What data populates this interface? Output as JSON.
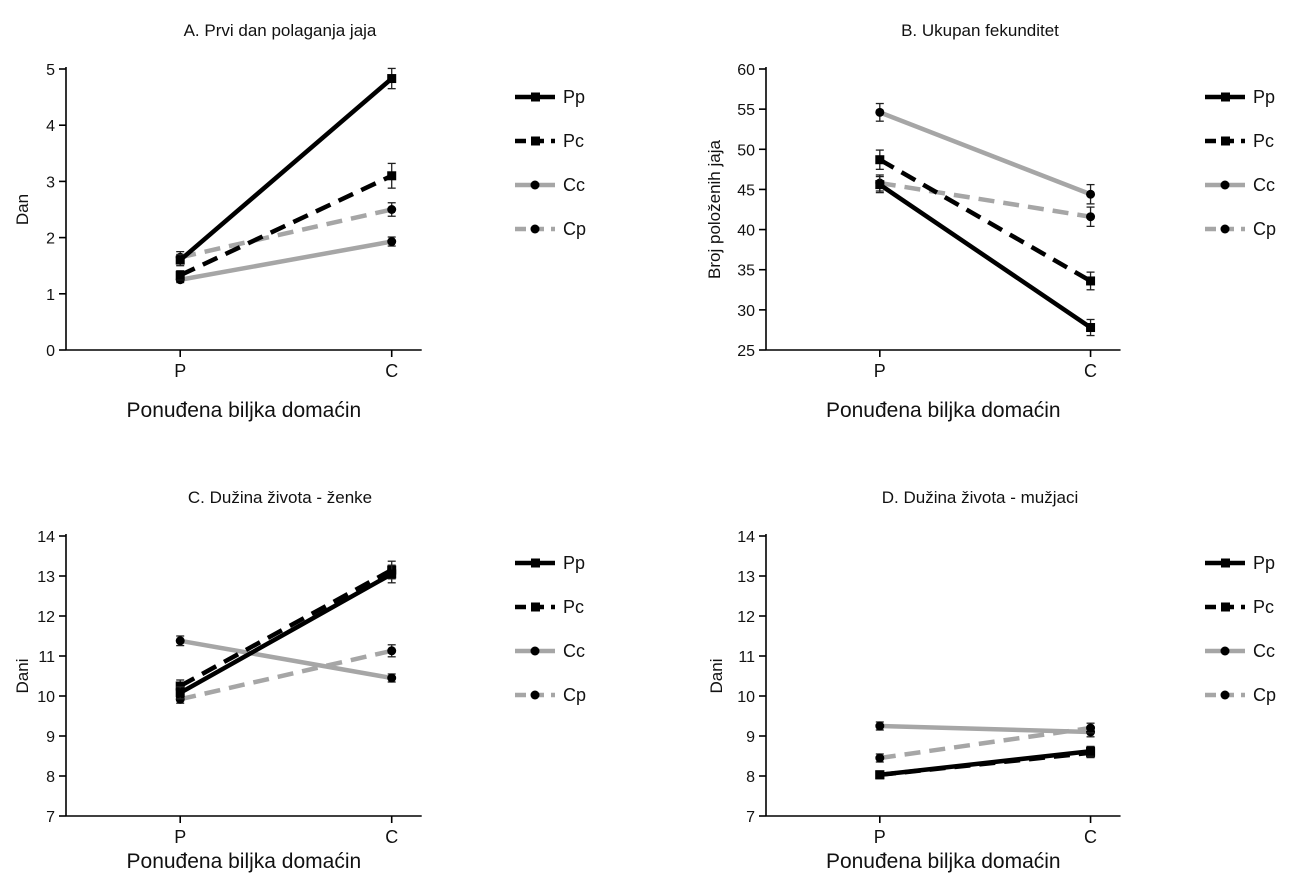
{
  "chart_data": [
    {
      "type": "line",
      "title": "A. Prvi dan polaganja jaja",
      "xlabel": "Ponuđena biljka domaćin",
      "ylabel": "Dan",
      "categories": [
        "P",
        "C"
      ],
      "ylim": [
        0,
        5
      ],
      "yticks": [
        0,
        1,
        2,
        3,
        4,
        5
      ],
      "legend": "right",
      "series": [
        {
          "name": "Pp",
          "values": [
            1.6,
            4.83
          ],
          "err": [
            0.1,
            0.18
          ]
        },
        {
          "name": "Pc",
          "values": [
            1.33,
            3.1
          ],
          "err": [
            0.08,
            0.22
          ]
        },
        {
          "name": "Cc",
          "values": [
            1.25,
            1.93
          ],
          "err": [
            0.05,
            0.08
          ]
        },
        {
          "name": "Cp",
          "values": [
            1.65,
            2.5
          ],
          "err": [
            0.1,
            0.12
          ]
        }
      ]
    },
    {
      "type": "line",
      "title": "B. Ukupan fekunditet",
      "xlabel": "Ponuđena biljka domaćin",
      "ylabel": "Broj položenih jaja",
      "categories": [
        "P",
        "C"
      ],
      "ylim": [
        25,
        60
      ],
      "yticks": [
        25,
        30,
        35,
        40,
        45,
        50,
        55,
        60
      ],
      "legend": "right",
      "series": [
        {
          "name": "Pp",
          "values": [
            45.6,
            27.8
          ],
          "err": [
            1.0,
            1.0
          ]
        },
        {
          "name": "Pc",
          "values": [
            48.7,
            33.6
          ],
          "err": [
            1.2,
            1.1
          ]
        },
        {
          "name": "Cc",
          "values": [
            54.6,
            44.4
          ],
          "err": [
            1.1,
            1.2
          ]
        },
        {
          "name": "Cp",
          "values": [
            45.8,
            41.6
          ],
          "err": [
            1.0,
            1.2
          ]
        }
      ]
    },
    {
      "type": "line",
      "title": "C. Dužina života - ženke",
      "xlabel": "Ponuđena biljka domaćin",
      "ylabel": "Dani",
      "categories": [
        "P",
        "C"
      ],
      "ylim": [
        7,
        14
      ],
      "yticks": [
        7,
        8,
        9,
        10,
        11,
        12,
        13,
        14
      ],
      "legend": "right",
      "series": [
        {
          "name": "Pp",
          "values": [
            10.08,
            13.05
          ],
          "err": [
            0.15,
            0.22
          ]
        },
        {
          "name": "Pc",
          "values": [
            10.25,
            13.15
          ],
          "err": [
            0.15,
            0.22
          ]
        },
        {
          "name": "Cc",
          "values": [
            11.38,
            10.45
          ],
          "err": [
            0.12,
            0.1
          ]
        },
        {
          "name": "Cp",
          "values": [
            9.92,
            11.13
          ],
          "err": [
            0.1,
            0.15
          ]
        }
      ]
    },
    {
      "type": "line",
      "title": "D. Dužina života - mužjaci",
      "xlabel": "Ponuđena biljka domaćin",
      "ylabel": "Dani",
      "categories": [
        "P",
        "C"
      ],
      "ylim": [
        7,
        14
      ],
      "yticks": [
        7,
        8,
        9,
        10,
        11,
        12,
        13,
        14
      ],
      "legend": "right",
      "series": [
        {
          "name": "Pp",
          "values": [
            8.03,
            8.62
          ],
          "err": [
            0.08,
            0.12
          ]
        },
        {
          "name": "Pc",
          "values": [
            8.03,
            8.58
          ],
          "err": [
            0.08,
            0.12
          ]
        },
        {
          "name": "Cc",
          "values": [
            9.25,
            9.1
          ],
          "err": [
            0.1,
            0.12
          ]
        },
        {
          "name": "Cp",
          "values": [
            8.45,
            9.2
          ],
          "err": [
            0.1,
            0.12
          ]
        }
      ]
    }
  ],
  "styles": {
    "Pp": {
      "color": "#000000",
      "dash": "solid",
      "marker": "square"
    },
    "Pc": {
      "color": "#000000",
      "dash": "dashed",
      "marker": "square"
    },
    "Cc": {
      "color": "#a6a6a6",
      "dash": "solid",
      "marker": "circle"
    },
    "Cp": {
      "color": "#a6a6a6",
      "dash": "dashed",
      "marker": "circle"
    }
  }
}
